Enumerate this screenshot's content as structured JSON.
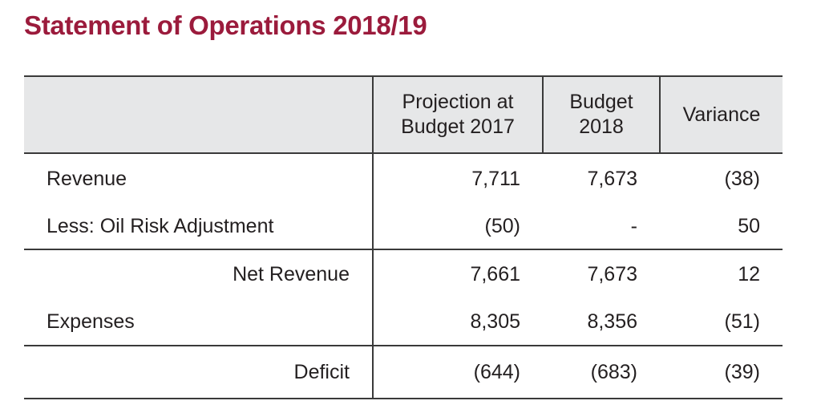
{
  "title": "Statement of Operations 2018/19",
  "table": {
    "headers": {
      "label": "",
      "projection_line1": "Projection at",
      "projection_line2": "Budget 2017",
      "budget_line1": "Budget",
      "budget_line2": "2018",
      "variance": "Variance"
    },
    "rows": [
      {
        "label": "Revenue",
        "projection": "7,711",
        "budget": "7,673",
        "variance": "(38)"
      },
      {
        "label": "Less: Oil Risk Adjustment",
        "projection": "(50)",
        "budget": "-",
        "variance": "50"
      },
      {
        "label": "Net Revenue",
        "projection": "7,661",
        "budget": "7,673",
        "variance": "12"
      },
      {
        "label": "Expenses",
        "projection": "8,305",
        "budget": "8,356",
        "variance": "(51)"
      },
      {
        "label": "Deficit",
        "projection": "(644)",
        "budget": "(683)",
        "variance": "(39)"
      }
    ]
  }
}
